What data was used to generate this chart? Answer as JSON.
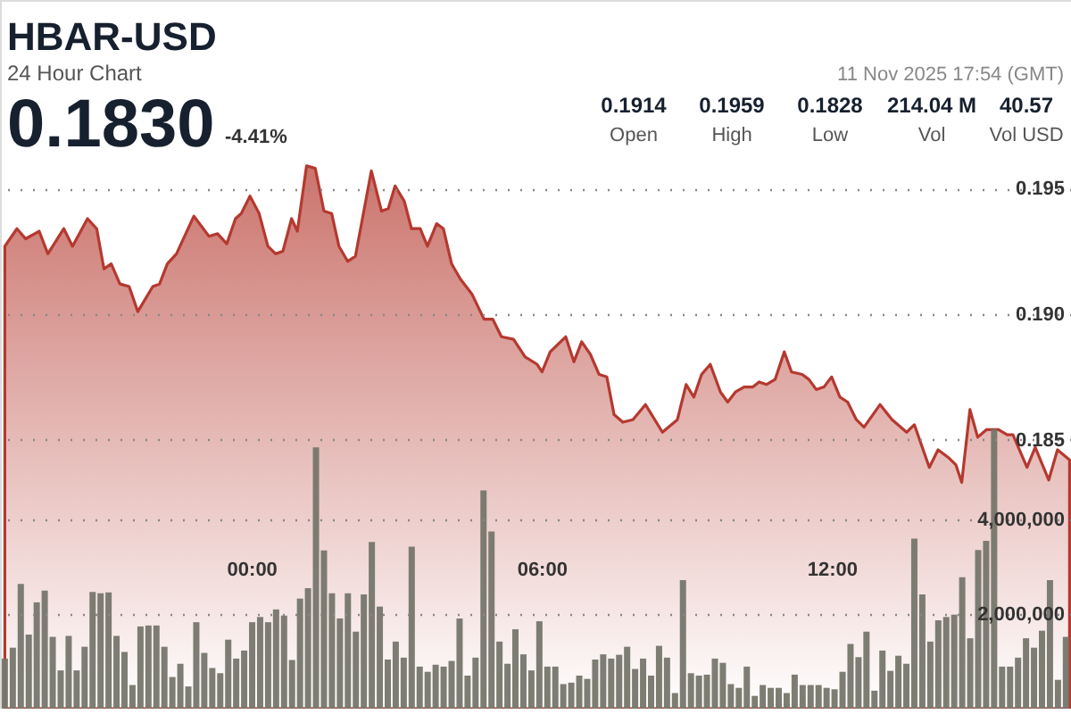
{
  "chart_data": {
    "type": "area",
    "title": "HBAR-USD",
    "subtitle": "24 Hour Chart",
    "annotations": [
      "0.1830",
      "-4.41%",
      "0.1914",
      "Open",
      "0.1959",
      "High",
      "0.1828",
      "Low",
      "214.04 M",
      "Vol",
      "40.57",
      "Vol USD",
      "11 Nov 2025 17:54 (GMT)"
    ],
    "xlim": [
      -5.2,
      16.95
    ],
    "xticks": [
      {
        "value": 0,
        "label": "00:00"
      },
      {
        "value": 6,
        "label": "06:00"
      },
      {
        "value": 12,
        "label": "12:00"
      }
    ],
    "ylim": [
      0.1743,
      0.2025
    ],
    "yticks": [
      {
        "value": 0.185,
        "label": "0.185"
      },
      {
        "value": 0.19,
        "label": "0.190"
      },
      {
        "value": 0.195,
        "label": "0.195"
      }
    ],
    "y2lim": [
      0,
      15000000
    ],
    "y2ticks": [
      {
        "value": 2000000,
        "label": "2,000,000"
      },
      {
        "value": 4000000,
        "label": "4,000,000"
      }
    ],
    "grid": "y",
    "series": [
      {
        "type": "area",
        "color": "#b5392f",
        "x": [
          -5.1,
          -4.85,
          -4.67,
          -4.39,
          -4.21,
          -3.88,
          -3.7,
          -3.39,
          -3.2,
          -3.05,
          -2.9,
          -2.72,
          -2.53,
          -2.35,
          -2.04,
          -1.9,
          -1.74,
          -1.55,
          -1.19,
          -0.88,
          -0.7,
          -0.51,
          -0.33,
          -0.21,
          -0.03,
          0.16,
          0.34,
          0.5,
          0.65,
          0.83,
          0.95,
          1.14,
          1.32,
          1.5,
          1.66,
          1.81,
          1.99,
          2.15,
          2.48,
          2.69,
          2.83,
          2.97,
          3.16,
          3.31,
          3.49,
          3.64,
          3.83,
          3.97,
          4.14,
          4.32,
          4.56,
          4.81,
          4.99,
          5.17,
          5.42,
          5.66,
          5.91,
          6.01,
          6.18,
          6.5,
          6.67,
          6.83,
          7.01,
          7.19,
          7.35,
          7.5,
          7.68,
          7.89,
          8.15,
          8.5,
          8.81,
          8.99,
          9.15,
          9.31,
          9.49,
          9.7,
          9.85,
          10.01,
          10.19,
          10.37,
          10.5,
          10.65,
          10.83,
          11.02,
          11.17,
          11.39,
          11.53,
          11.68,
          11.84,
          12.0,
          12.17,
          12.33,
          12.51,
          12.67,
          13.0,
          13.25,
          13.55,
          13.71,
          14.02,
          14.2,
          14.41,
          14.57,
          14.69,
          14.86,
          15.02,
          15.2,
          15.45,
          15.63,
          15.75,
          16.04,
          16.21,
          16.49,
          16.67,
          16.92
        ],
        "values": [
          0.1927,
          0.1934,
          0.193,
          0.1933,
          0.1924,
          0.1934,
          0.1927,
          0.1938,
          0.1934,
          0.1918,
          0.192,
          0.1912,
          0.1911,
          0.1901,
          0.1911,
          0.1912,
          0.192,
          0.1924,
          0.1939,
          0.1931,
          0.1932,
          0.1928,
          0.1938,
          0.194,
          0.1947,
          0.194,
          0.1927,
          0.1924,
          0.1925,
          0.1938,
          0.1933,
          0.1959,
          0.1958,
          0.1941,
          0.194,
          0.1927,
          0.1921,
          0.1923,
          0.1957,
          0.1941,
          0.1942,
          0.1951,
          0.1945,
          0.1934,
          0.1934,
          0.1927,
          0.1936,
          0.1934,
          0.192,
          0.1914,
          0.1908,
          0.1898,
          0.1898,
          0.1891,
          0.189,
          0.1883,
          0.188,
          0.1877,
          0.1885,
          0.1891,
          0.1881,
          0.1889,
          0.1884,
          0.1876,
          0.1875,
          0.186,
          0.1857,
          0.1858,
          0.1864,
          0.1853,
          0.1858,
          0.1872,
          0.1867,
          0.1876,
          0.188,
          0.1869,
          0.1865,
          0.1869,
          0.1871,
          0.1871,
          0.1873,
          0.1872,
          0.1874,
          0.1885,
          0.1877,
          0.1876,
          0.1874,
          0.187,
          0.1871,
          0.1875,
          0.1867,
          0.1865,
          0.1858,
          0.1855,
          0.1864,
          0.1858,
          0.1853,
          0.1856,
          0.1839,
          0.1846,
          0.1843,
          0.184,
          0.1833,
          0.1862,
          0.1851,
          0.1854,
          0.1854,
          0.1852,
          0.1852,
          0.1839,
          0.1847,
          0.1834,
          0.1846,
          0.1842
        ]
      },
      {
        "type": "bar",
        "axis": "y2",
        "color": "#76766c",
        "x": [
          -5.1,
          -4.935,
          -4.77,
          -4.605,
          -4.44,
          -4.275,
          -4.11,
          -3.945,
          -3.78,
          -3.615,
          -3.45,
          -3.285,
          -3.12,
          -2.955,
          -2.79,
          -2.625,
          -2.46,
          -2.295,
          -2.13,
          -1.965,
          -1.8,
          -1.635,
          -1.47,
          -1.305,
          -1.14,
          -0.975,
          -0.81,
          -0.645,
          -0.48,
          -0.315,
          -0.15,
          0.015,
          0.18,
          0.345,
          0.51,
          0.675,
          0.84,
          1.005,
          1.17,
          1.335,
          1.5,
          1.665,
          1.83,
          1.995,
          2.16,
          2.325,
          2.49,
          2.655,
          2.82,
          2.985,
          3.15,
          3.315,
          3.48,
          3.645,
          3.81,
          3.975,
          4.14,
          4.305,
          4.47,
          4.635,
          4.8,
          4.965,
          5.13,
          5.295,
          5.46,
          5.625,
          5.79,
          5.955,
          6.12,
          6.285,
          6.45,
          6.615,
          6.78,
          6.945,
          7.11,
          7.275,
          7.44,
          7.605,
          7.77,
          7.935,
          8.1,
          8.265,
          8.43,
          8.595,
          8.76,
          8.925,
          9.09,
          9.255,
          9.42,
          9.585,
          9.75,
          9.915,
          10.08,
          10.245,
          10.41,
          10.575,
          10.74,
          10.905,
          11.07,
          11.235,
          11.4,
          11.565,
          11.73,
          11.895,
          12.06,
          12.225,
          12.39,
          12.555,
          12.72,
          12.885,
          13.05,
          13.215,
          13.38,
          13.545,
          13.71,
          13.875,
          14.04,
          14.205,
          14.37,
          14.535,
          14.7,
          14.865,
          15.03,
          15.195,
          15.36,
          15.525,
          15.69,
          15.855,
          16.02,
          16.185,
          16.35,
          16.515,
          16.68,
          16.845
        ],
        "values": [
          1060000,
          1290000,
          2640000,
          1570000,
          2250000,
          2500000,
          1520000,
          810000,
          1540000,
          810000,
          1310000,
          2470000,
          2440000,
          2460000,
          1540000,
          1200000,
          500000,
          1740000,
          1760000,
          1760000,
          1310000,
          670000,
          950000,
          470000,
          1830000,
          1180000,
          860000,
          750000,
          1460000,
          1060000,
          1230000,
          1830000,
          1940000,
          1830000,
          2100000,
          1970000,
          1030000,
          2330000,
          2550000,
          5530000,
          3350000,
          2440000,
          1910000,
          2440000,
          1630000,
          2420000,
          3530000,
          2160000,
          1040000,
          1420000,
          1080000,
          3430000,
          890000,
          780000,
          930000,
          890000,
          1010000,
          1910000,
          700000,
          1080000,
          4620000,
          3750000,
          1420000,
          950000,
          1680000,
          1150000,
          810000,
          1850000,
          890000,
          890000,
          520000,
          550000,
          700000,
          630000,
          1040000,
          1150000,
          1060000,
          1140000,
          1310000,
          840000,
          1060000,
          700000,
          1330000,
          1080000,
          330000,
          2720000,
          750000,
          700000,
          720000,
          1060000,
          970000,
          520000,
          440000,
          890000,
          270000,
          500000,
          440000,
          440000,
          330000,
          720000,
          500000,
          500000,
          500000,
          440000,
          410000,
          780000,
          1370000,
          1090000,
          1630000,
          380000,
          1230000,
          800000,
          1120000,
          950000,
          3600000,
          2420000,
          1420000,
          1870000,
          1940000,
          1990000,
          2780000,
          1490000,
          3360000,
          3550000,
          5920000,
          890000,
          890000,
          1080000,
          1490000,
          1290000,
          1650000,
          2720000,
          610000,
          1520000
        ]
      }
    ]
  }
}
